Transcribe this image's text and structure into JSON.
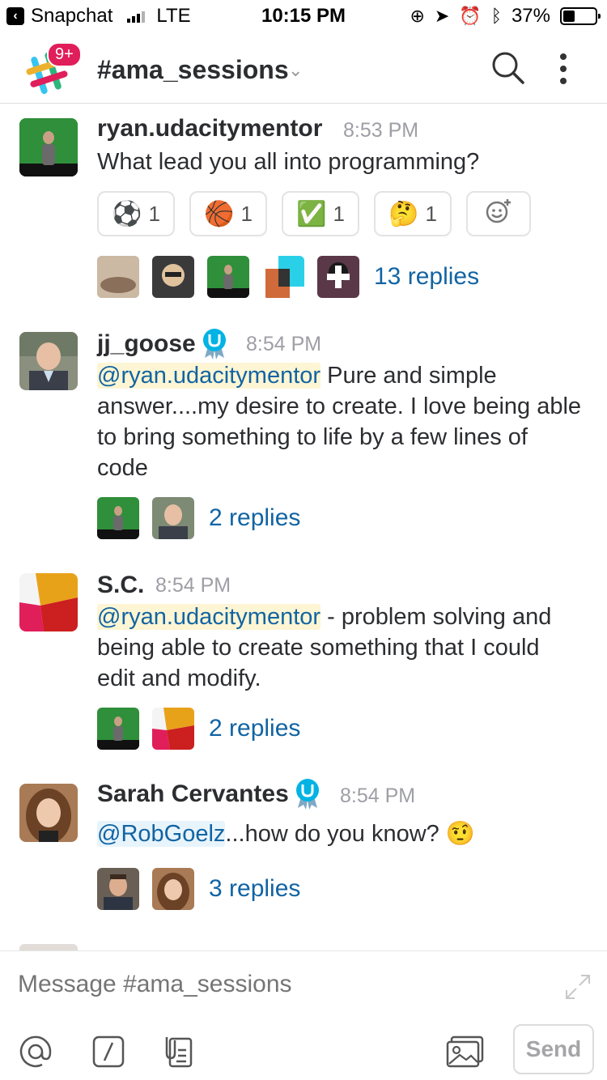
{
  "status_bar": {
    "back_app": "Snapchat",
    "network": "LTE",
    "time": "10:15 PM",
    "battery": "37%"
  },
  "header": {
    "badge": "9+",
    "channel": "#ama_sessions"
  },
  "messages": [
    {
      "author": "ryan.udacitymentor",
      "time": "8:53 PM",
      "text": "What lead you all into programming?",
      "reactions": [
        {
          "emoji": "⚽",
          "count": "1"
        },
        {
          "emoji": "🏀",
          "count": "1"
        },
        {
          "emoji": "✅",
          "count": "1"
        },
        {
          "emoji": "🤔",
          "count": "1"
        }
      ],
      "replies": "13 replies"
    },
    {
      "author": "jj_goose",
      "time": "8:54 PM",
      "mention": "@ryan.udacitymentor",
      "text": " Pure and simple answer....my desire to create.  I love being able to bring something to life by a few lines of code",
      "replies": "2 replies"
    },
    {
      "author": "S.C.",
      "time": "8:54 PM",
      "mention": "@ryan.udacitymentor",
      "text": " - problem solving and being able to create something that I could edit and modify.",
      "replies": "2 replies"
    },
    {
      "author": "Sarah Cervantes",
      "time": "8:54 PM",
      "mention": "@RobGoelz",
      "text": "...how do you know? 🤨",
      "replies": "3 replies"
    }
  ],
  "composer": {
    "placeholder": "Message #ama_sessions",
    "send_label": "Send"
  },
  "colors": {
    "link": "#1264a3",
    "mention_bg": "#fdf5d3",
    "green_screen": "#2f8f3a"
  }
}
